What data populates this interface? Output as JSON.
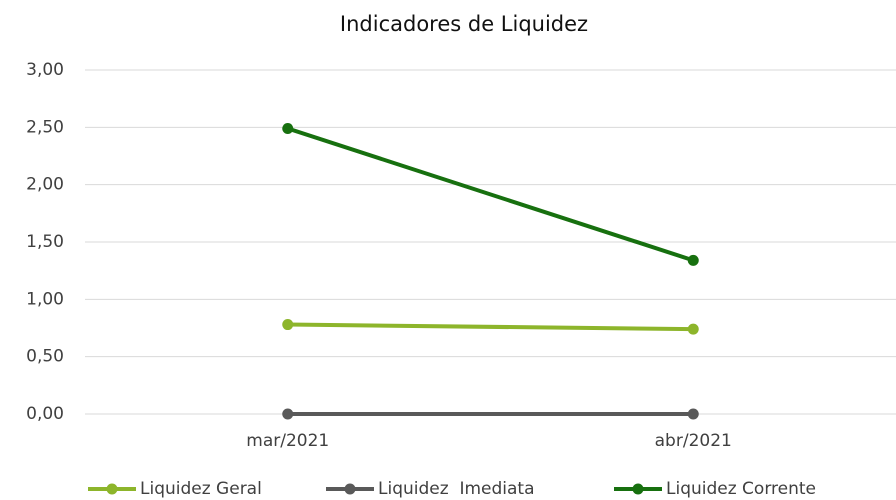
{
  "chart_data": {
    "type": "line",
    "title": "Indicadores de Liquidez",
    "categories": [
      "mar/2021",
      "abr/2021"
    ],
    "series": [
      {
        "name": "Liquidez Geral",
        "color": "#8db52b",
        "values": [
          0.78,
          0.74
        ]
      },
      {
        "name": "Liquidez  Imediata",
        "color": "#595959",
        "values": [
          0,
          0
        ]
      },
      {
        "name": "Liquidez Corrente",
        "color": "#17700f",
        "values": [
          2.49,
          1.34
        ]
      }
    ],
    "ylim": [
      0,
      3
    ],
    "yticks": [
      {
        "value": 0,
        "label": "0,00"
      },
      {
        "value": 0.5,
        "label": "0,50"
      },
      {
        "value": 1,
        "label": "1,00"
      },
      {
        "value": 1.5,
        "label": "1,50"
      },
      {
        "value": 2,
        "label": "2,00"
      },
      {
        "value": 2.5,
        "label": "2,50"
      },
      {
        "value": 3,
        "label": "3,00"
      }
    ],
    "grid": true,
    "legend": "bottom"
  }
}
